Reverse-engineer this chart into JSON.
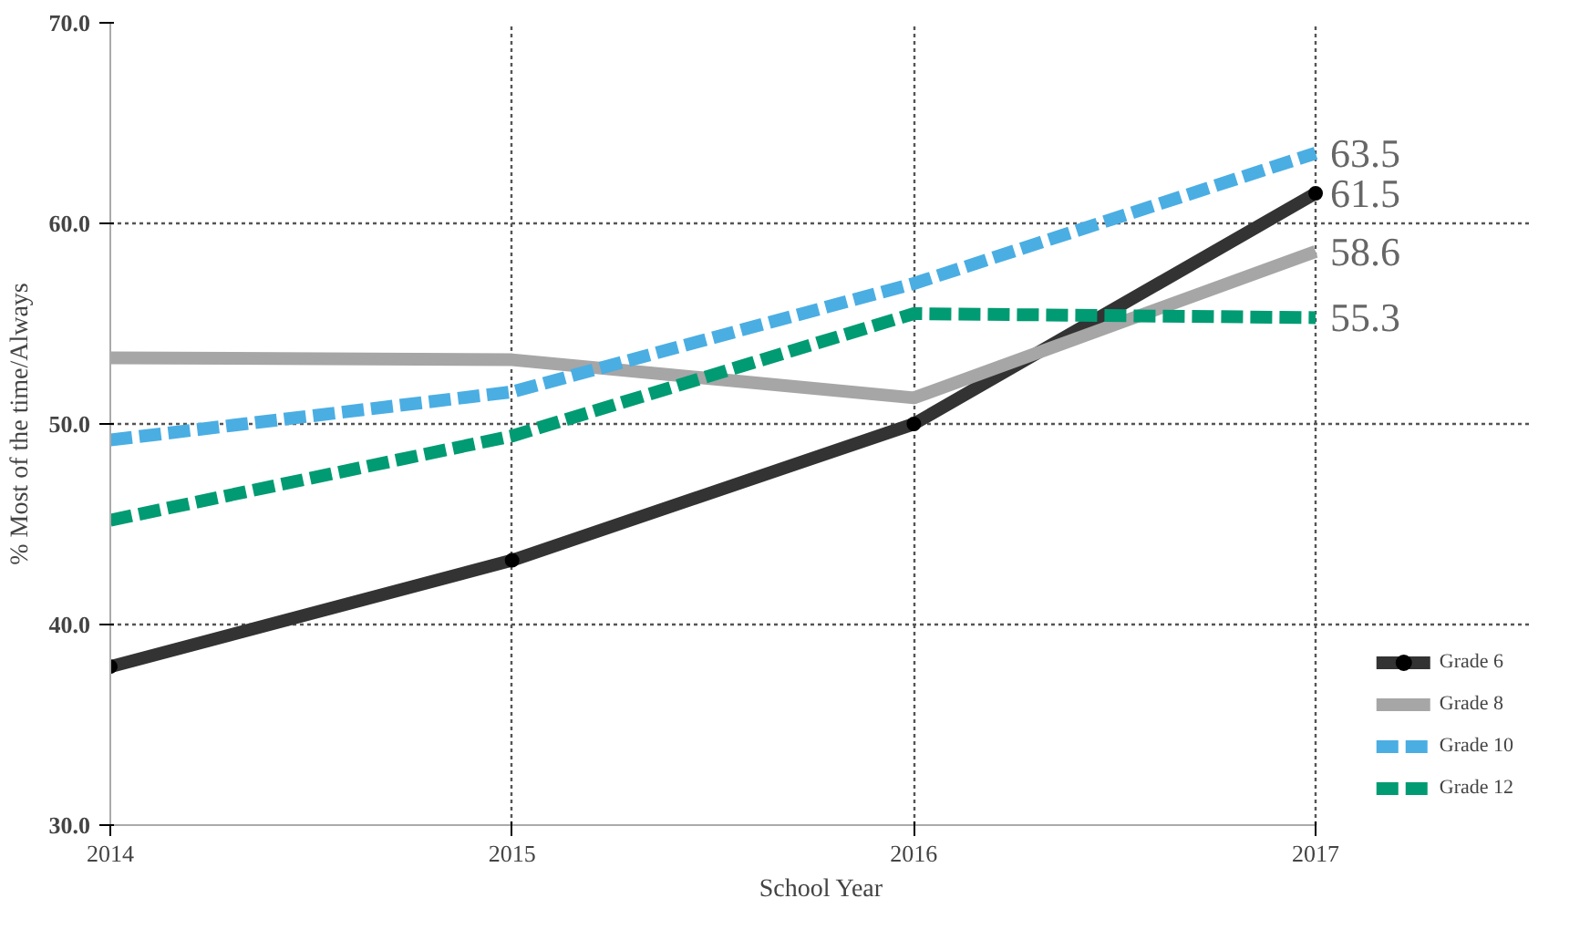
{
  "chart_data": {
    "type": "line",
    "xlabel": "School Year",
    "ylabel": "% Most of the time/Always",
    "x": [
      2014,
      2015,
      2016,
      2017
    ],
    "xlim": [
      2014,
      2017
    ],
    "xticks": [
      2014,
      2015,
      2016,
      2017
    ],
    "ylim": [
      30,
      70
    ],
    "yticks": [
      {
        "value": 30,
        "label": "30.0"
      },
      {
        "value": 40,
        "label": "40.0"
      },
      {
        "value": 50,
        "label": "50.0"
      },
      {
        "value": 60,
        "label": "60.0"
      },
      {
        "value": 70,
        "label": "70.0"
      }
    ],
    "grid": true,
    "legend": "bottom right",
    "series": [
      {
        "name": "Grade 6",
        "color": "#333333",
        "values": [
          37.9,
          43.2,
          50.0,
          61.5
        ],
        "marker": "circle",
        "line_style": "solid",
        "value_labels": [
          null,
          null,
          null,
          "61.5"
        ]
      },
      {
        "name": "Grade 8",
        "color": "#a6a6a6",
        "values": [
          53.3,
          53.2,
          51.3,
          58.6
        ],
        "line_style": "solid",
        "value_labels": [
          null,
          null,
          null,
          "58.6"
        ]
      },
      {
        "name": "Grade 10",
        "color": "#4aaee3",
        "values": [
          49.2,
          51.6,
          57.0,
          63.5
        ],
        "line_style": "dashed",
        "value_labels": [
          null,
          null,
          null,
          "63.5"
        ]
      },
      {
        "name": "Grade 12",
        "color": "#009b72",
        "values": [
          45.2,
          49.4,
          55.5,
          55.3
        ],
        "line_style": "dashed",
        "value_labels": [
          null,
          null,
          null,
          "55.3"
        ]
      }
    ]
  }
}
